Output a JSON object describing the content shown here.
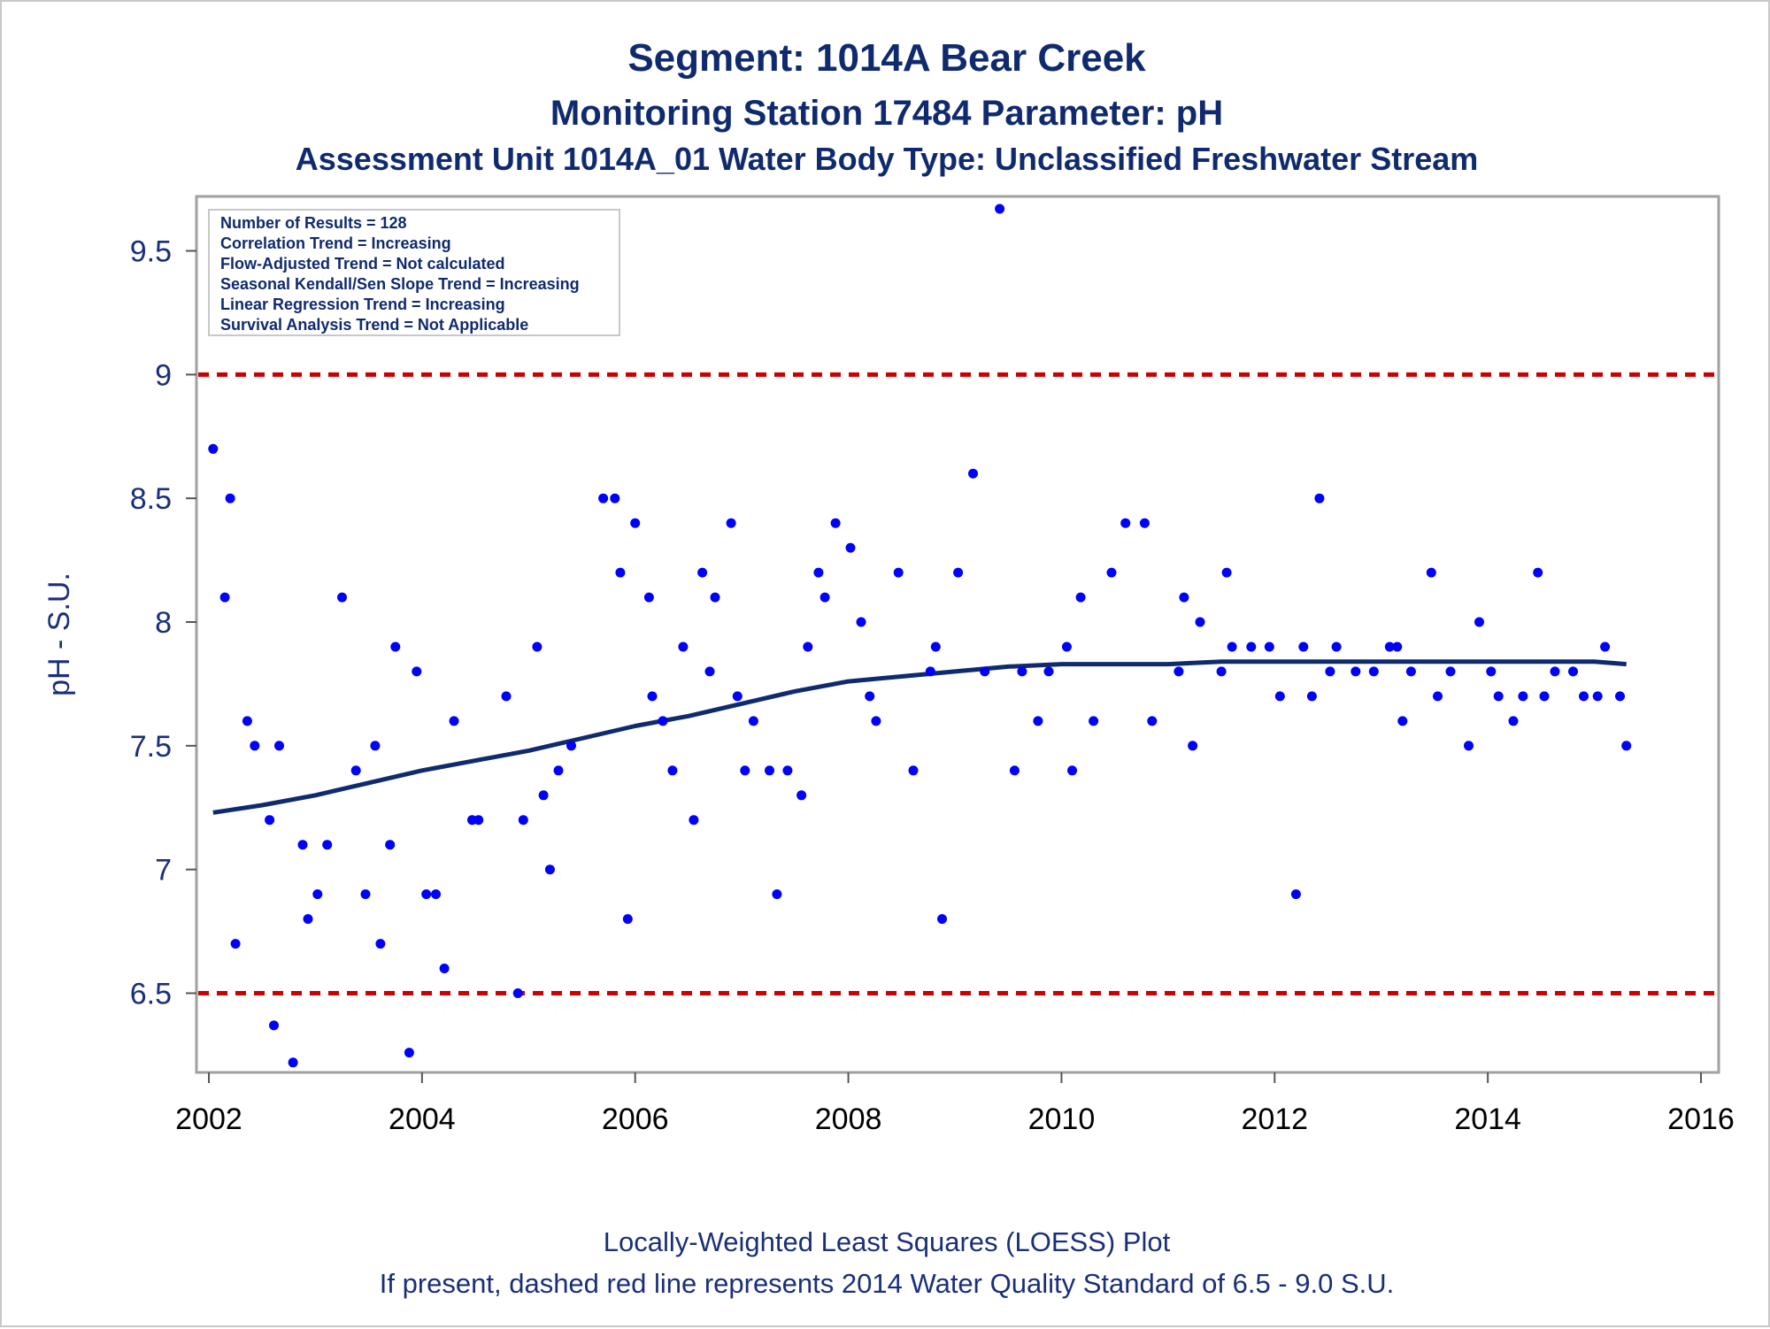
{
  "chart_data": {
    "type": "scatter",
    "title": "Segment: 1014A  Bear Creek",
    "subtitle_1": "Monitoring Station 17484 Parameter: pH",
    "subtitle_2": "Assessment Unit 1014A_01   Water Body Type: Unclassified Freshwater Stream",
    "ylabel": "pH - S.U.",
    "xlabel": "",
    "xlim": [
      2002,
      2016
    ],
    "ylim": [
      6.18,
      9.72
    ],
    "x_ticks": [
      2002,
      2004,
      2006,
      2008,
      2010,
      2012,
      2014,
      2016
    ],
    "y_ticks": [
      6.5,
      7,
      7.5,
      8,
      8.5,
      9,
      9.5
    ],
    "y_tick_labels": [
      "6.5",
      "7",
      "7.5",
      "8",
      "8.5",
      "9",
      "9.5"
    ],
    "grid": false,
    "stats_box": {
      "placement": "top-left",
      "lines": [
        "Number of Results = 128",
        "Correlation Trend = Increasing",
        "Flow-Adjusted Trend = Not calculated",
        "Seasonal Kendall/Sen Slope Trend = Increasing",
        "Linear Regression Trend = Increasing",
        "Survival Analysis Trend = Not Applicable"
      ]
    },
    "reference_lines": [
      {
        "y": 9.0,
        "color": "#cc0000",
        "style": "dashed"
      },
      {
        "y": 6.5,
        "color": "#cc0000",
        "style": "dashed"
      }
    ],
    "series": [
      {
        "kind": "points",
        "color": "#0000ff",
        "points": [
          [
            2002.04,
            8.7
          ],
          [
            2002.15,
            8.1
          ],
          [
            2002.2,
            8.5
          ],
          [
            2002.25,
            6.7
          ],
          [
            2002.36,
            7.6
          ],
          [
            2002.43,
            7.5
          ],
          [
            2002.57,
            7.2
          ],
          [
            2002.61,
            6.37
          ],
          [
            2002.66,
            7.5
          ],
          [
            2002.79,
            6.22
          ],
          [
            2002.88,
            7.1
          ],
          [
            2002.93,
            6.8
          ],
          [
            2003.02,
            6.9
          ],
          [
            2003.11,
            7.1
          ],
          [
            2003.25,
            8.1
          ],
          [
            2003.38,
            7.4
          ],
          [
            2003.47,
            6.9
          ],
          [
            2003.56,
            7.5
          ],
          [
            2003.61,
            6.7
          ],
          [
            2003.7,
            7.1
          ],
          [
            2003.75,
            7.9
          ],
          [
            2003.88,
            6.26
          ],
          [
            2003.95,
            7.8
          ],
          [
            2004.04,
            6.9
          ],
          [
            2004.13,
            6.9
          ],
          [
            2004.21,
            6.6
          ],
          [
            2004.3,
            7.6
          ],
          [
            2004.47,
            7.2
          ],
          [
            2004.53,
            7.2
          ],
          [
            2004.79,
            7.7
          ],
          [
            2004.9,
            6.5
          ],
          [
            2004.95,
            7.2
          ],
          [
            2005.08,
            7.9
          ],
          [
            2005.14,
            7.3
          ],
          [
            2005.2,
            7.0
          ],
          [
            2005.28,
            7.4
          ],
          [
            2005.4,
            7.5
          ],
          [
            2005.7,
            8.5
          ],
          [
            2005.81,
            8.5
          ],
          [
            2005.86,
            8.2
          ],
          [
            2005.93,
            6.8
          ],
          [
            2006.0,
            8.4
          ],
          [
            2006.13,
            8.1
          ],
          [
            2006.16,
            7.7
          ],
          [
            2006.26,
            7.6
          ],
          [
            2006.35,
            7.4
          ],
          [
            2006.45,
            7.9
          ],
          [
            2006.55,
            7.2
          ],
          [
            2006.63,
            8.2
          ],
          [
            2006.7,
            7.8
          ],
          [
            2006.75,
            8.1
          ],
          [
            2006.9,
            8.4
          ],
          [
            2006.96,
            7.7
          ],
          [
            2007.03,
            7.4
          ],
          [
            2007.11,
            7.6
          ],
          [
            2007.26,
            7.4
          ],
          [
            2007.33,
            6.9
          ],
          [
            2007.43,
            7.4
          ],
          [
            2007.56,
            7.3
          ],
          [
            2007.62,
            7.9
          ],
          [
            2007.72,
            8.2
          ],
          [
            2007.78,
            8.1
          ],
          [
            2007.88,
            8.4
          ],
          [
            2008.02,
            8.3
          ],
          [
            2008.12,
            8.0
          ],
          [
            2008.2,
            7.7
          ],
          [
            2008.26,
            7.6
          ],
          [
            2008.47,
            8.2
          ],
          [
            2008.61,
            7.4
          ],
          [
            2008.77,
            7.8
          ],
          [
            2008.82,
            7.9
          ],
          [
            2008.88,
            6.8
          ],
          [
            2009.03,
            8.2
          ],
          [
            2009.17,
            8.6
          ],
          [
            2009.28,
            7.8
          ],
          [
            2009.42,
            9.67
          ],
          [
            2009.56,
            7.4
          ],
          [
            2009.63,
            7.8
          ],
          [
            2009.78,
            7.6
          ],
          [
            2009.88,
            7.8
          ],
          [
            2010.05,
            7.9
          ],
          [
            2010.1,
            7.4
          ],
          [
            2010.18,
            8.1
          ],
          [
            2010.3,
            7.6
          ],
          [
            2010.47,
            8.2
          ],
          [
            2010.6,
            8.4
          ],
          [
            2010.78,
            8.4
          ],
          [
            2010.85,
            7.6
          ],
          [
            2011.1,
            7.8
          ],
          [
            2011.15,
            8.1
          ],
          [
            2011.23,
            7.5
          ],
          [
            2011.3,
            8.0
          ],
          [
            2011.5,
            7.8
          ],
          [
            2011.55,
            8.2
          ],
          [
            2011.6,
            7.9
          ],
          [
            2011.78,
            7.9
          ],
          [
            2011.95,
            7.9
          ],
          [
            2012.05,
            7.7
          ],
          [
            2012.2,
            6.9
          ],
          [
            2012.27,
            7.9
          ],
          [
            2012.35,
            7.7
          ],
          [
            2012.42,
            8.5
          ],
          [
            2012.52,
            7.8
          ],
          [
            2012.58,
            7.9
          ],
          [
            2012.76,
            7.8
          ],
          [
            2012.93,
            7.8
          ],
          [
            2013.08,
            7.9
          ],
          [
            2013.15,
            7.9
          ],
          [
            2013.2,
            7.6
          ],
          [
            2013.28,
            7.8
          ],
          [
            2013.47,
            8.2
          ],
          [
            2013.53,
            7.7
          ],
          [
            2013.65,
            7.8
          ],
          [
            2013.82,
            7.5
          ],
          [
            2013.92,
            8.0
          ],
          [
            2014.03,
            7.8
          ],
          [
            2014.1,
            7.7
          ],
          [
            2014.24,
            7.6
          ],
          [
            2014.33,
            7.7
          ],
          [
            2014.47,
            8.2
          ],
          [
            2014.53,
            7.7
          ],
          [
            2014.63,
            7.8
          ],
          [
            2014.8,
            7.8
          ],
          [
            2014.9,
            7.7
          ],
          [
            2015.03,
            7.7
          ],
          [
            2015.1,
            7.9
          ],
          [
            2015.24,
            7.7
          ],
          [
            2015.3,
            7.5
          ]
        ]
      },
      {
        "kind": "loess-line",
        "color": "#0f2a6e",
        "x": [
          2002.04,
          2002.5,
          2003.0,
          2003.5,
          2004.0,
          2004.5,
          2005.0,
          2005.5,
          2006.0,
          2006.5,
          2007.0,
          2007.5,
          2008.0,
          2008.5,
          2009.0,
          2009.5,
          2010.0,
          2010.5,
          2011.0,
          2011.5,
          2012.0,
          2012.5,
          2013.0,
          2013.5,
          2014.0,
          2014.5,
          2015.0,
          2015.3
        ],
        "y": [
          7.23,
          7.26,
          7.3,
          7.35,
          7.4,
          7.44,
          7.48,
          7.53,
          7.58,
          7.62,
          7.67,
          7.72,
          7.76,
          7.78,
          7.8,
          7.82,
          7.83,
          7.83,
          7.83,
          7.84,
          7.84,
          7.84,
          7.84,
          7.84,
          7.84,
          7.84,
          7.84,
          7.83
        ]
      }
    ]
  },
  "footnote_1": "Locally-Weighted Least Squares (LOESS) Plot",
  "footnote_2": "If present, dashed red line represents 2014 Water Quality Standard of 6.5 - 9.0 S.U."
}
